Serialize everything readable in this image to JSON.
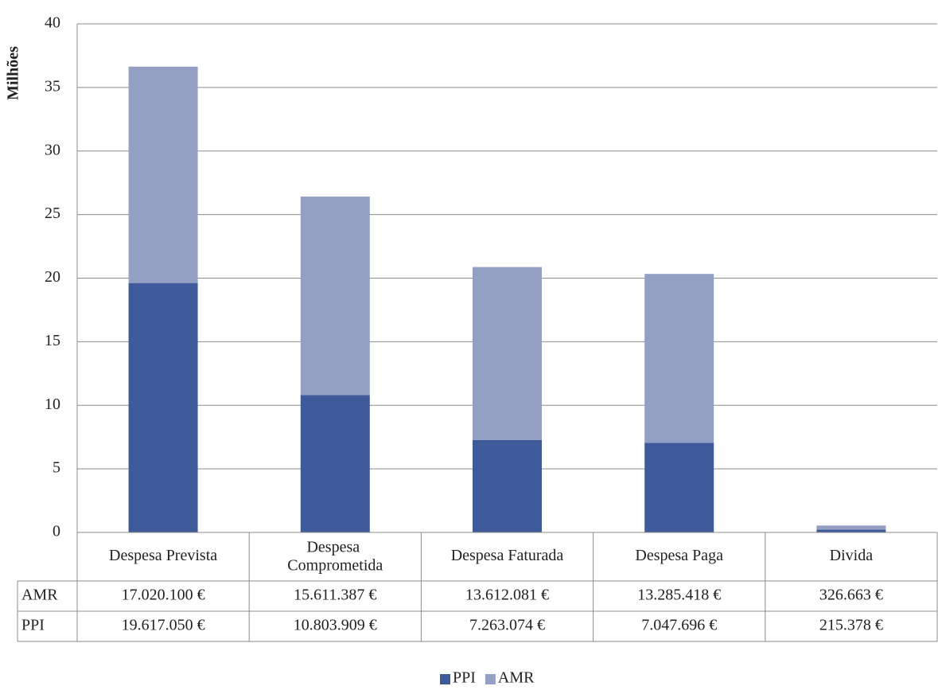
{
  "chart_data": {
    "type": "stacked_bar",
    "y_label": "Milhões",
    "categories": [
      "Despesa Prevista",
      "Despesa Comprometida",
      "Despesa Faturada",
      "Despesa Paga",
      "Divida"
    ],
    "series": [
      {
        "name": "PPI",
        "color": "#3f5a9a",
        "values": [
          19.61705,
          10.803909,
          7.263074,
          7.047696,
          0.215378
        ],
        "value_labels": [
          "19.617.050 €",
          "10.803.909 €",
          "7.263.074 €",
          "7.047.696 €",
          "215.378 €"
        ]
      },
      {
        "name": "AMR",
        "color": "#949fc4",
        "values": [
          17.0201,
          15.611387,
          13.612081,
          13.285418,
          0.326663
        ],
        "value_labels": [
          "17.020.100 €",
          "15.611.387 €",
          "13.612.081 €",
          "13.285.418 €",
          "326.663 €"
        ]
      }
    ],
    "ylim": [
      0,
      40
    ],
    "yticks": [
      0,
      5,
      10,
      15,
      20,
      25,
      30,
      35,
      40
    ],
    "grid": true,
    "legend": "bottom"
  }
}
